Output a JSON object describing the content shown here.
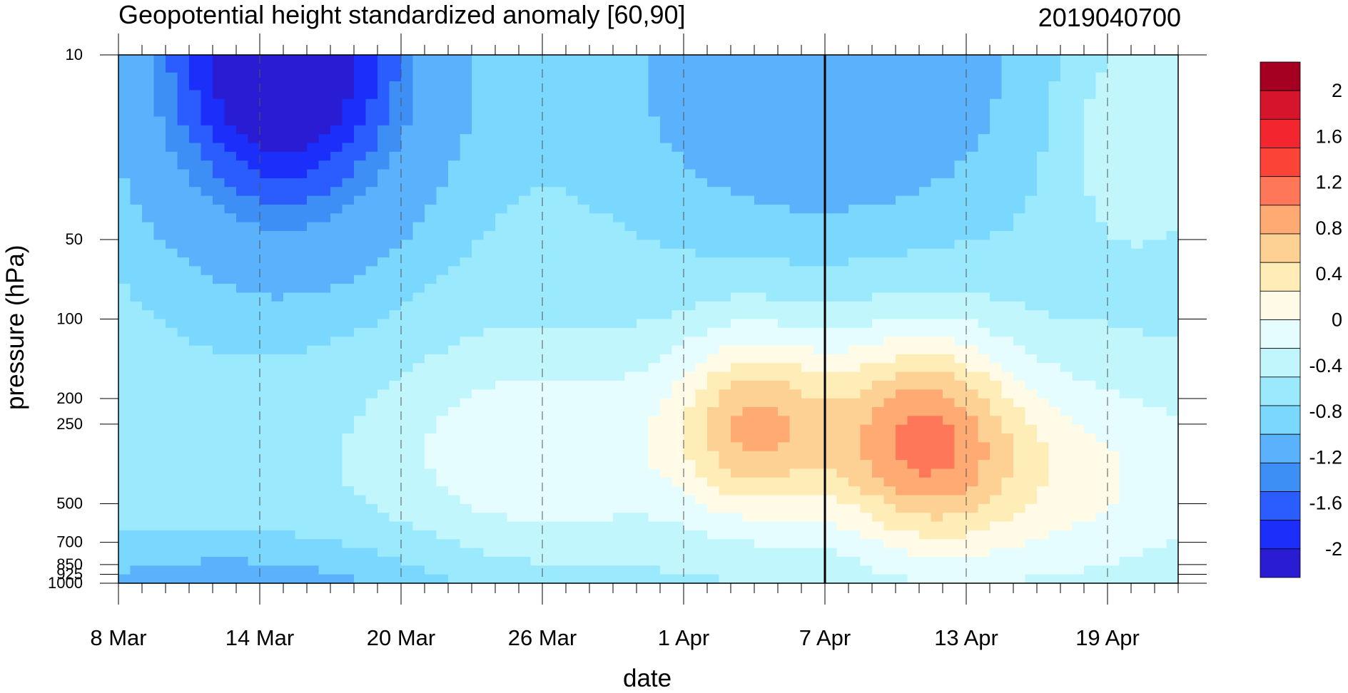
{
  "chart_data": {
    "type": "contour",
    "title": "Geopotential height standardized anomaly [60,90]",
    "date_stamp": "2019040700",
    "xlabel": "date",
    "ylabel": "pressure (hPa)",
    "x_ticks": [
      "8 Mar",
      "14 Mar",
      "20 Mar",
      "26 Mar",
      "1 Apr",
      "7 Apr",
      "13 Apr",
      "19 Apr"
    ],
    "x_range_days": [
      0,
      45
    ],
    "current_date_marker": "7 Apr",
    "y_scale": "log",
    "y_range_hPa": [
      1000,
      10
    ],
    "y_ticks": [
      10,
      50,
      100,
      200,
      250,
      500,
      700,
      850,
      925,
      1000
    ],
    "colorbar_labels": [
      "2",
      "1.6",
      "1.2",
      "0.8",
      "0.4",
      "0",
      "-0.4",
      "-0.8",
      "-1.2",
      "-1.6",
      "-2"
    ],
    "colorbar_colors": [
      "#a50021",
      "#d6142c",
      "#f3262f",
      "#fc4338",
      "#ff7759",
      "#ffaa73",
      "#fdd093",
      "#ffedb8",
      "#fffbe6",
      "#e5fdff",
      "#c2f6fd",
      "#9be9fd",
      "#7ad7fd",
      "#5ab2fc",
      "#3d8ef5",
      "#2b5cfe",
      "#1b2efa",
      "#2a1cd2"
    ],
    "levels": [
      -2.0,
      -1.8,
      -1.6,
      -1.4,
      -1.2,
      -1.0,
      -0.8,
      -0.6,
      -0.4,
      -0.2,
      0,
      0.2,
      0.4,
      0.6,
      0.8,
      1.0,
      1.2,
      1.4,
      1.6,
      1.8,
      2.0
    ],
    "grid": "dashed vertical lines at labeled dates"
  }
}
